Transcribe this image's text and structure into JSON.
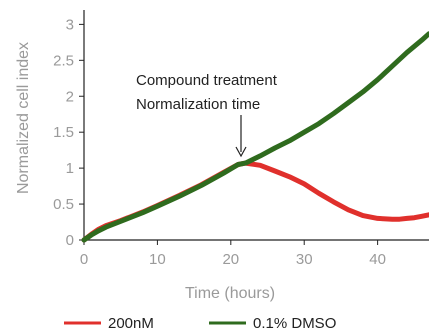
{
  "chart_data": {
    "type": "line",
    "title": "",
    "xlabel": "Time (hours)",
    "ylabel": "Normalized cell index",
    "xlim": [
      0,
      47
    ],
    "ylim": [
      0,
      3.2
    ],
    "x_ticks": [
      0,
      10,
      20,
      30,
      40
    ],
    "y_ticks": [
      0,
      0.5,
      1,
      1.5,
      2,
      2.5,
      3
    ],
    "y_tick_labels": [
      "0",
      "0.5",
      "1",
      "1.5",
      "2",
      "2.5",
      "3"
    ],
    "grid": false,
    "legend_position": "bottom",
    "annotation": {
      "lines": [
        "Compound treatment",
        "Normalization time"
      ],
      "x": 22,
      "y": 1.07
    },
    "series": [
      {
        "name": "200nM",
        "color": "#e0302c",
        "x": [
          0,
          1,
          2,
          3,
          5,
          8,
          10,
          13,
          16,
          19,
          21,
          22,
          24,
          26,
          28,
          30,
          32,
          34,
          36,
          38,
          40,
          42,
          43,
          44,
          45,
          46,
          47
        ],
        "y": [
          0,
          0.08,
          0.15,
          0.2,
          0.27,
          0.39,
          0.48,
          0.62,
          0.77,
          0.94,
          1.05,
          1.07,
          1.04,
          0.96,
          0.88,
          0.78,
          0.65,
          0.53,
          0.42,
          0.34,
          0.3,
          0.29,
          0.29,
          0.3,
          0.31,
          0.33,
          0.35
        ]
      },
      {
        "name": "0.1% DMSO",
        "color": "#2f6b1e",
        "x": [
          0,
          1,
          2,
          3,
          5,
          8,
          10,
          13,
          16,
          19,
          21,
          22,
          24,
          26,
          28,
          30,
          32,
          34,
          36,
          38,
          40,
          42,
          44,
          46,
          47
        ],
        "y": [
          0,
          0.07,
          0.13,
          0.18,
          0.26,
          0.38,
          0.47,
          0.61,
          0.76,
          0.93,
          1.05,
          1.07,
          1.17,
          1.28,
          1.38,
          1.5,
          1.62,
          1.76,
          1.91,
          2.06,
          2.23,
          2.42,
          2.61,
          2.78,
          2.87
        ]
      }
    ]
  }
}
